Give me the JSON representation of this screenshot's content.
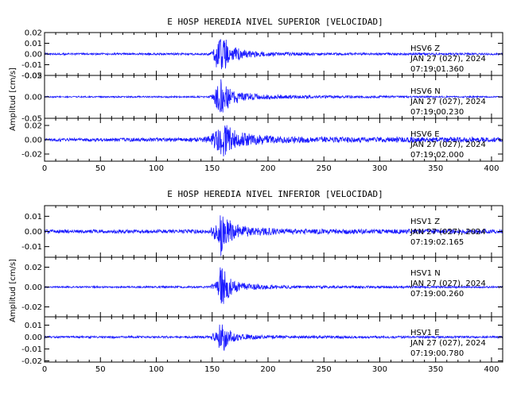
{
  "chart_data": [
    {
      "type": "line",
      "title": "E HOSP HEREDIA NIVEL SUPERIOR [VELOCIDAD]",
      "ylabel": "Amplitud [cm/s]",
      "xlim": [
        0,
        410
      ],
      "xticks": [
        "0",
        "50",
        "100",
        "150",
        "200",
        "250",
        "300",
        "350",
        "400"
      ],
      "series": [
        {
          "name": "HSV6 Z",
          "ylim": [
            -0.02,
            0.02
          ],
          "yticks": [
            "0.02",
            "0.01",
            "0.00",
            "-0.01",
            "-0.02"
          ],
          "ann": [
            "HSV6    Z",
            "JAN 27 (027), 2024",
            "07:19:01.360"
          ],
          "env": [
            [
              0,
              0.0009
            ],
            [
              148,
              0.001
            ],
            [
              150,
              0.003
            ],
            [
              152,
              0.009
            ],
            [
              155,
              0.016
            ],
            [
              158,
              0.02
            ],
            [
              162,
              0.014
            ],
            [
              168,
              0.007
            ],
            [
              180,
              0.004
            ],
            [
              200,
              0.002
            ],
            [
              250,
              0.0012
            ],
            [
              410,
              0.0009
            ]
          ]
        },
        {
          "name": "HSV6 N",
          "ylim": [
            -0.05,
            0.05
          ],
          "yticks": [
            "0.05",
            "0.00",
            "-0.05"
          ],
          "ann": [
            "HSV6    N",
            "JAN 27 (027), 2024",
            "07:19:00.230"
          ],
          "env": [
            [
              0,
              0.0015
            ],
            [
              148,
              0.002
            ],
            [
              150,
              0.006
            ],
            [
              153,
              0.02
            ],
            [
              156,
              0.045
            ],
            [
              159,
              0.04
            ],
            [
              165,
              0.025
            ],
            [
              175,
              0.012
            ],
            [
              190,
              0.007
            ],
            [
              220,
              0.004
            ],
            [
              260,
              0.003
            ],
            [
              410,
              0.0015
            ]
          ]
        },
        {
          "name": "HSV6 E",
          "ylim": [
            -0.03,
            0.03
          ],
          "yticks": [
            "0.02",
            "0.00",
            "-0.02"
          ],
          "ann": [
            "HSV6    E",
            "JAN 27 (027), 2024",
            "07:19:02.000"
          ],
          "env": [
            [
              0,
              0.002
            ],
            [
              140,
              0.003
            ],
            [
              148,
              0.006
            ],
            [
              152,
              0.014
            ],
            [
              156,
              0.02
            ],
            [
              160,
              0.025
            ],
            [
              165,
              0.02
            ],
            [
              172,
              0.012
            ],
            [
              185,
              0.008
            ],
            [
              210,
              0.005
            ],
            [
              260,
              0.004
            ],
            [
              410,
              0.0035
            ]
          ]
        }
      ]
    },
    {
      "type": "line",
      "title": "E HOSP HEREDIA NIVEL INFERIOR [VELOCIDAD]",
      "ylabel": "Amplitud [cm/s]",
      "xlim": [
        0,
        410
      ],
      "xticks": [
        "0",
        "50",
        "100",
        "150",
        "200",
        "250",
        "300",
        "350",
        "400"
      ],
      "series": [
        {
          "name": "HSV1 Z",
          "ylim": [
            -0.017,
            0.017
          ],
          "yticks": [
            "0.01",
            "0.00",
            "-0.01"
          ],
          "ann": [
            "HSV1    Z",
            "JAN 27 (027), 2024",
            "07:19:02.165"
          ],
          "env": [
            [
              0,
              0.0012
            ],
            [
              148,
              0.0013
            ],
            [
              150,
              0.004
            ],
            [
              152,
              0.007
            ],
            [
              155,
              0.005
            ],
            [
              158,
              0.017
            ],
            [
              162,
              0.01
            ],
            [
              170,
              0.005
            ],
            [
              185,
              0.003
            ],
            [
              220,
              0.0018
            ],
            [
              410,
              0.0013
            ]
          ]
        },
        {
          "name": "HSV1 N",
          "ylim": [
            -0.03,
            0.03
          ],
          "yticks": [
            "0.02",
            "0.00",
            "-0.02"
          ],
          "ann": [
            "HSV1    N",
            "JAN 27 (027), 2024",
            "07:19:00.260"
          ],
          "env": [
            [
              0,
              0.0008
            ],
            [
              148,
              0.001
            ],
            [
              151,
              0.004
            ],
            [
              155,
              0.006
            ],
            [
              158,
              0.026
            ],
            [
              162,
              0.014
            ],
            [
              170,
              0.006
            ],
            [
              185,
              0.003
            ],
            [
              220,
              0.0015
            ],
            [
              410,
              0.0009
            ]
          ]
        },
        {
          "name": "HSV1 E",
          "ylim": [
            -0.021,
            0.017
          ],
          "yticks": [
            "0.01",
            "0.00",
            "-0.01",
            "-0.02"
          ],
          "ann": [
            "HSV1    E",
            "JAN 27 (027), 2024",
            "07:19:00.780"
          ],
          "env": [
            [
              0,
              0.0008
            ],
            [
              148,
              0.001
            ],
            [
              151,
              0.004
            ],
            [
              155,
              0.005
            ],
            [
              158,
              0.017
            ],
            [
              162,
              0.009
            ],
            [
              170,
              0.004
            ],
            [
              185,
              0.002
            ],
            [
              220,
              0.0012
            ],
            [
              410,
              0.0008
            ]
          ]
        }
      ]
    }
  ]
}
